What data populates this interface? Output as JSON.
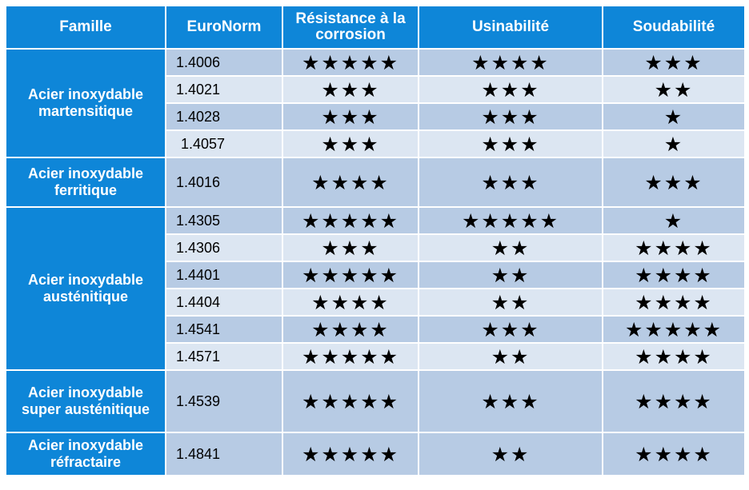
{
  "headers": [
    "Famille",
    "EuroNorm",
    "Résistance à la corrosion",
    "Usinabilité",
    "Soudabilité"
  ],
  "families": [
    "Acier inoxydable martensitique",
    "Acier inoxydable ferritique",
    "Acier inoxydable austénitique",
    "Acier inoxydable super austénitique",
    "Acier inoxydable réfractaire"
  ],
  "rows": [
    {
      "euronorm": "1.4006",
      "corrosion": "★★★★★",
      "usinabilite": "★★★★",
      "soudabilite": "★★★"
    },
    {
      "euronorm": "1.4021",
      "corrosion": "★★★",
      "usinabilite": "★★★",
      "soudabilite": "★★"
    },
    {
      "euronorm": "1.4028",
      "corrosion": "★★★",
      "usinabilite": "★★★",
      "soudabilite": "★"
    },
    {
      "euronorm": "1.4057",
      "corrosion": "★★★",
      "usinabilite": "★★★",
      "soudabilite": "★"
    },
    {
      "euronorm": "1.4016",
      "corrosion": "★★★★",
      "usinabilite": "★★★",
      "soudabilite": "★★★"
    },
    {
      "euronorm": "1.4305",
      "corrosion": "★★★★★",
      "usinabilite": "★★★★★",
      "soudabilite": "★"
    },
    {
      "euronorm": "1.4306",
      "corrosion": "★★★",
      "usinabilite": "★★",
      "soudabilite": "★★★★"
    },
    {
      "euronorm": "1.4401",
      "corrosion": "★★★★★",
      "usinabilite": "★★",
      "soudabilite": "★★★★"
    },
    {
      "euronorm": "1.4404",
      "corrosion": "★★★★",
      "usinabilite": "★★",
      "soudabilite": "★★★★"
    },
    {
      "euronorm": "1.4541",
      "corrosion": "★★★★",
      "usinabilite": "★★★",
      "soudabilite": "★★★★★"
    },
    {
      "euronorm": "1.4571",
      "corrosion": "★★★★★",
      "usinabilite": "★★",
      "soudabilite": "★★★★"
    },
    {
      "euronorm": "1.4539",
      "corrosion": "★★★★★",
      "usinabilite": "★★★",
      "soudabilite": "★★★★"
    },
    {
      "euronorm": "1.4841",
      "corrosion": "★★★★★",
      "usinabilite": "★★",
      "soudabilite": "★★★★"
    }
  ],
  "colors": {
    "header": "#0e86d8",
    "row_dark": "#b7cbe4",
    "row_light": "#dce6f2"
  }
}
